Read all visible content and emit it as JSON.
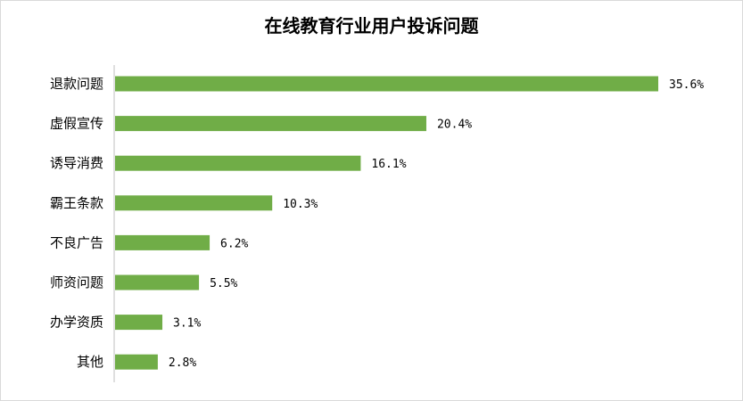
{
  "chart_data": {
    "type": "bar",
    "orientation": "horizontal",
    "title": "在线教育行业用户投诉问题",
    "categories": [
      "退款问题",
      "虚假宣传",
      "诱导消费",
      "霸王条款",
      "不良广告",
      "师资问题",
      "办学资质",
      "其他"
    ],
    "values": [
      35.6,
      20.4,
      16.1,
      10.3,
      6.2,
      5.5,
      3.1,
      2.8
    ],
    "value_labels": [
      "35.6%",
      "20.4%",
      "16.1%",
      "10.3%",
      "6.2%",
      "5.5%",
      "3.1%",
      "2.8%"
    ],
    "xlim": [
      0,
      35.6
    ],
    "bar_color": "#70ad47",
    "axis_color": "#bfbfbf",
    "grid": false,
    "legend": "none"
  }
}
